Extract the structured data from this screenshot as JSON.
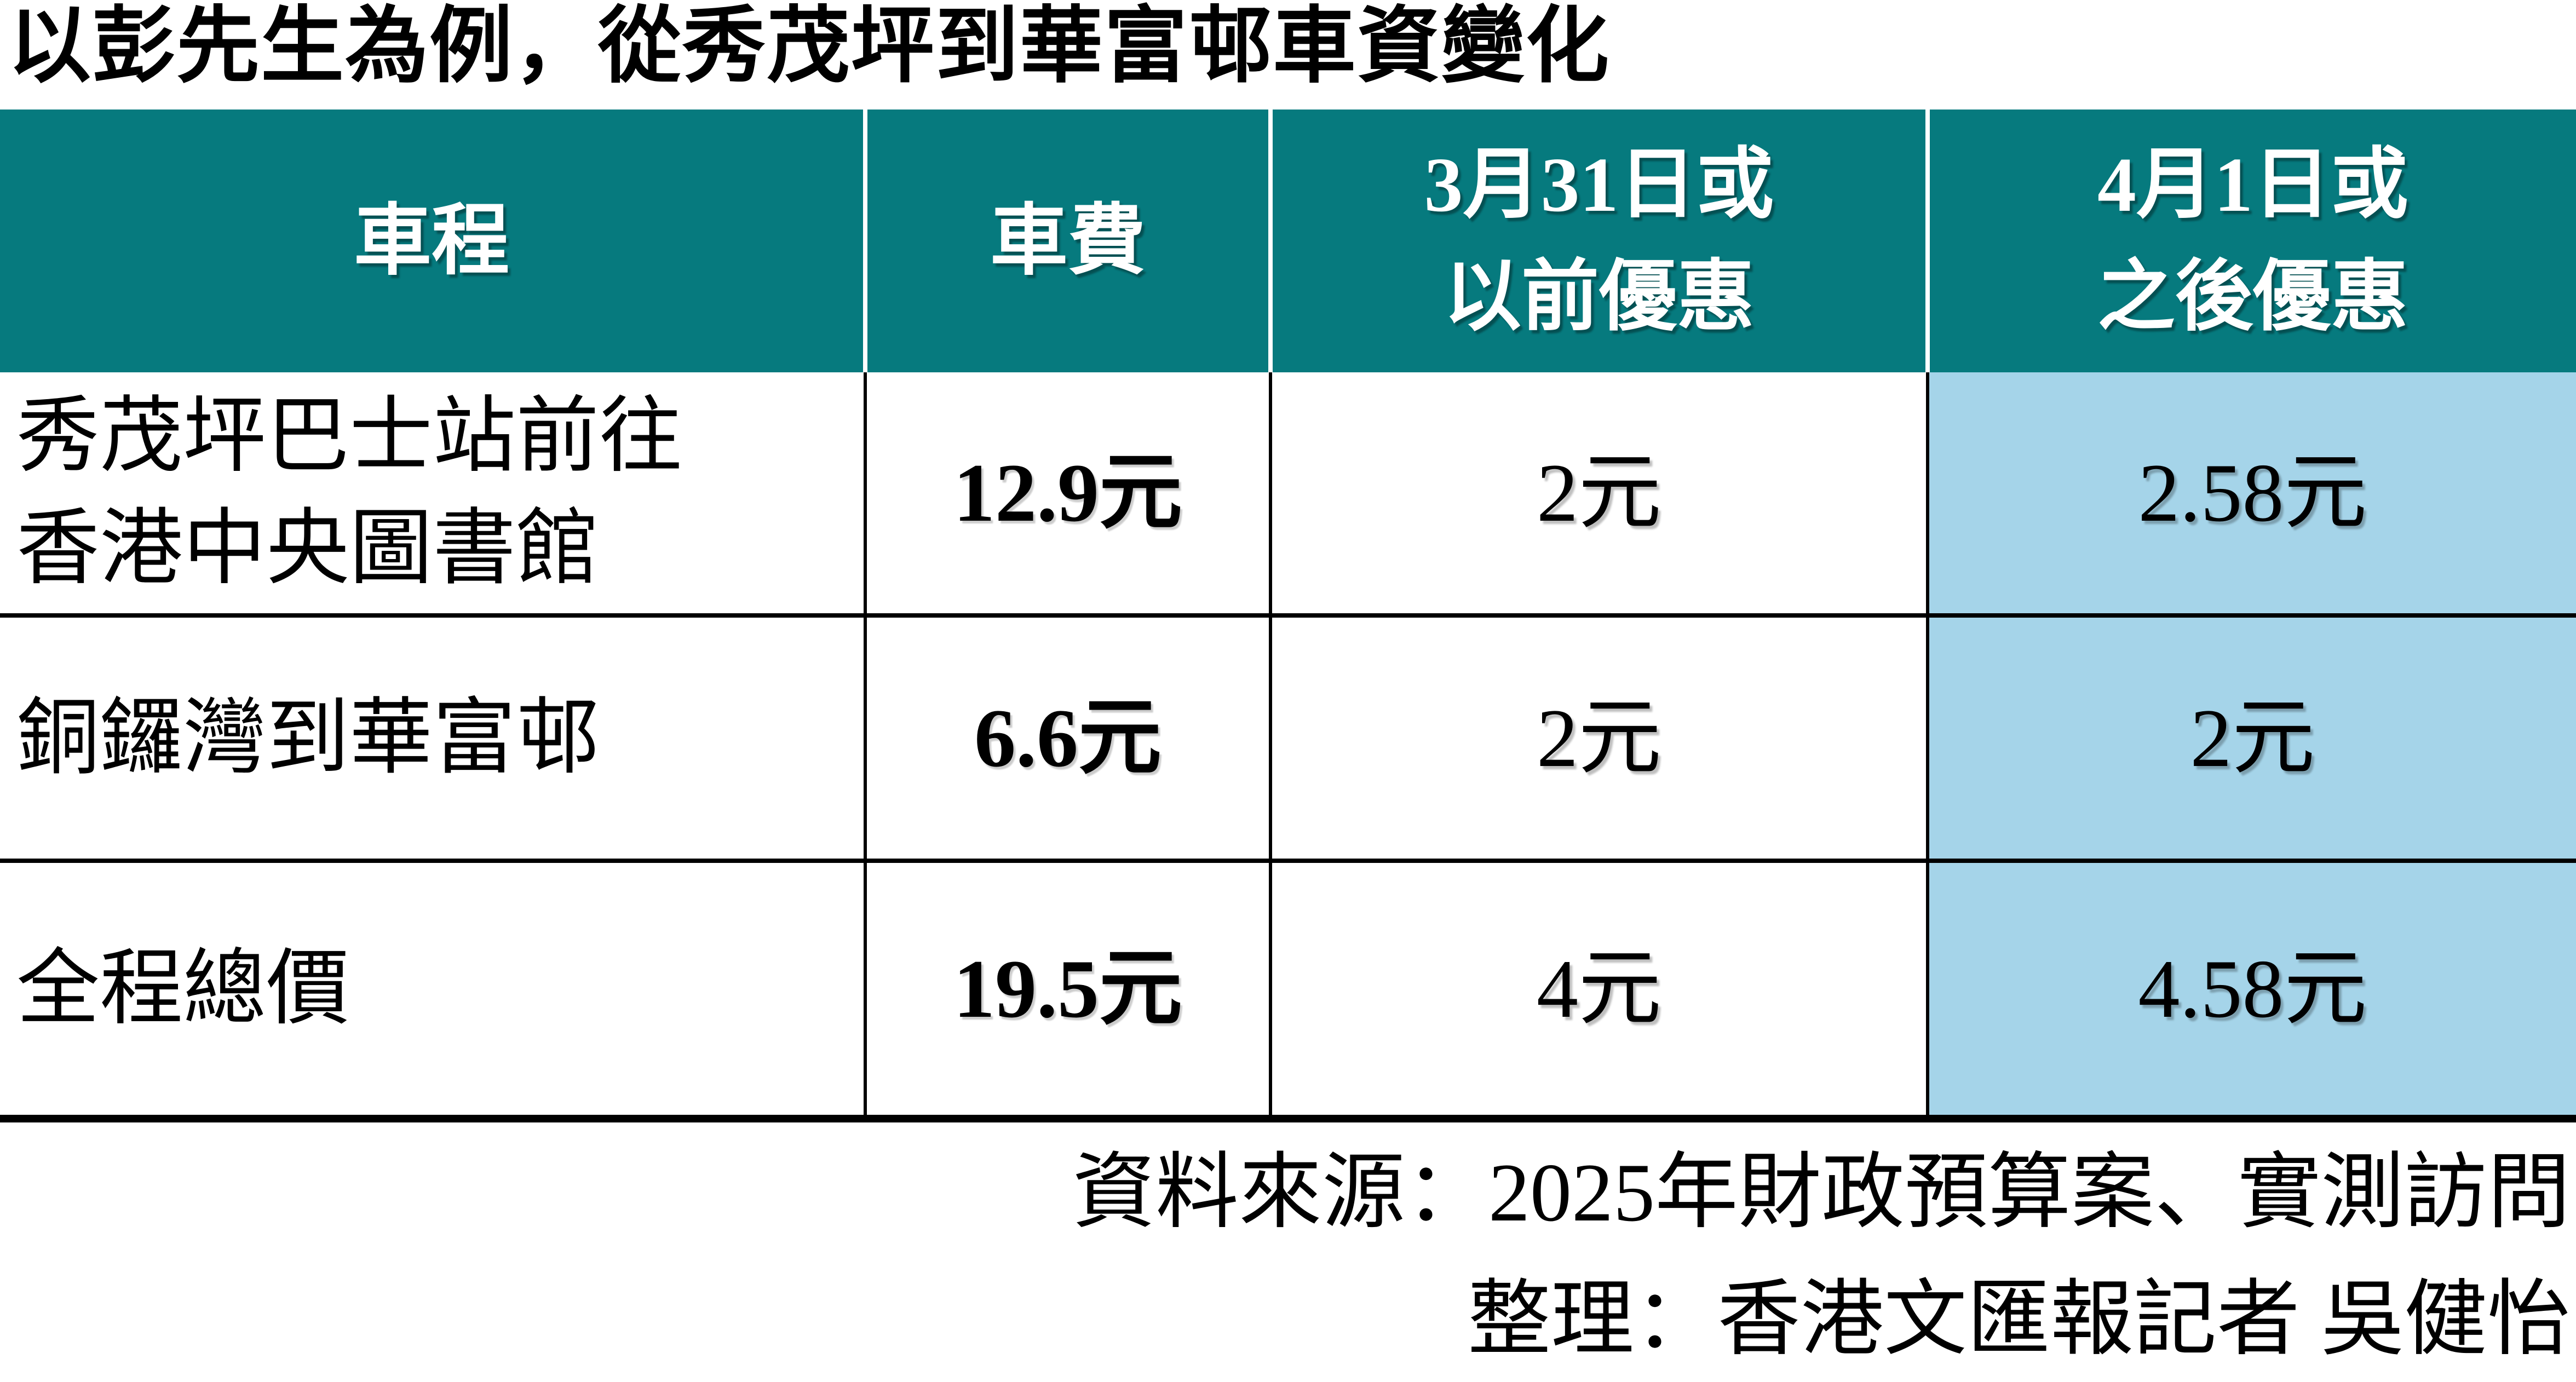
{
  "title": "以彭先生為例，從秀茂坪到華富邨車資變化",
  "table": {
    "headers": {
      "journey": "車程",
      "fare": "車費",
      "before": "3月31日或\n以前優惠",
      "after": "4月1日或\n之後優惠"
    },
    "rows": [
      {
        "journey": "秀茂坪巴士站前往\n香港中央圖書館",
        "fare": "12.9元",
        "before": "2元",
        "after": "2.58元"
      },
      {
        "journey": "銅鑼灣到華富邨",
        "fare": "6.6元",
        "before": "2元",
        "after": "2元"
      },
      {
        "journey": "全程總價",
        "fare": "19.5元",
        "before": "4元",
        "after": "4.58元"
      }
    ]
  },
  "footer": {
    "source": "資料來源：2025年財政預算案、實測訪問",
    "credit": "整理：香港文匯報記者 吳健怡"
  },
  "colors": {
    "header_bg": "#067a7e",
    "highlight_col_bg": "#a5d4e9",
    "header_text": "#ffffff",
    "text": "#000000"
  }
}
